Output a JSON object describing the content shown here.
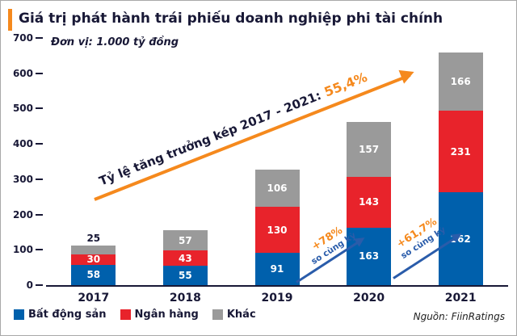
{
  "header": {
    "title": "Giá trị phát hành trái phiếu doanh nghiệp phi tài chính"
  },
  "unit_label": "Đơn vị: 1.000 tỷ đồng",
  "source": "Nguồn: FiinRatings",
  "annotations": {
    "cagr": {
      "text": "Tỷ lệ tăng trưởng kép 2017 - 2021:",
      "value": "55,4%"
    },
    "yoy": [
      {
        "pct": "+78%",
        "label": "so cùng kỳ"
      },
      {
        "pct": "+61,7%",
        "label": "so cùng kỳ"
      }
    ]
  },
  "colors": {
    "real_estate_blue": "#0060ac",
    "bank_red": "#e8232b",
    "other_gray": "#9a9a9a",
    "accent_orange": "#f5891d",
    "navy_text": "#181836",
    "yoy_arrow_blue": "#2a5caa"
  },
  "chart_data": {
    "type": "bar",
    "stacked": true,
    "title": "Giá trị phát hành trái phiếu doanh nghiệp phi tài chính",
    "unit": "1.000 tỷ đồng",
    "categories": [
      "2017",
      "2018",
      "2019",
      "2020",
      "2021"
    ],
    "series": [
      {
        "name": "Bất động sản",
        "color": "#0060ac",
        "values": [
          58,
          55,
          91,
          163,
          262
        ]
      },
      {
        "name": "Ngân hàng",
        "color": "#e8232b",
        "values": [
          30,
          43,
          130,
          143,
          231
        ]
      },
      {
        "name": "Khác",
        "color": "#9a9a9a",
        "values": [
          25,
          57,
          106,
          157,
          166
        ]
      }
    ],
    "totals": [
      113,
      155,
      327,
      463,
      659
    ],
    "ylim": [
      0,
      700
    ],
    "yticks": [
      0,
      100,
      200,
      300,
      400,
      500,
      600,
      700
    ],
    "grid": false,
    "legend_position": "bottom-left"
  }
}
